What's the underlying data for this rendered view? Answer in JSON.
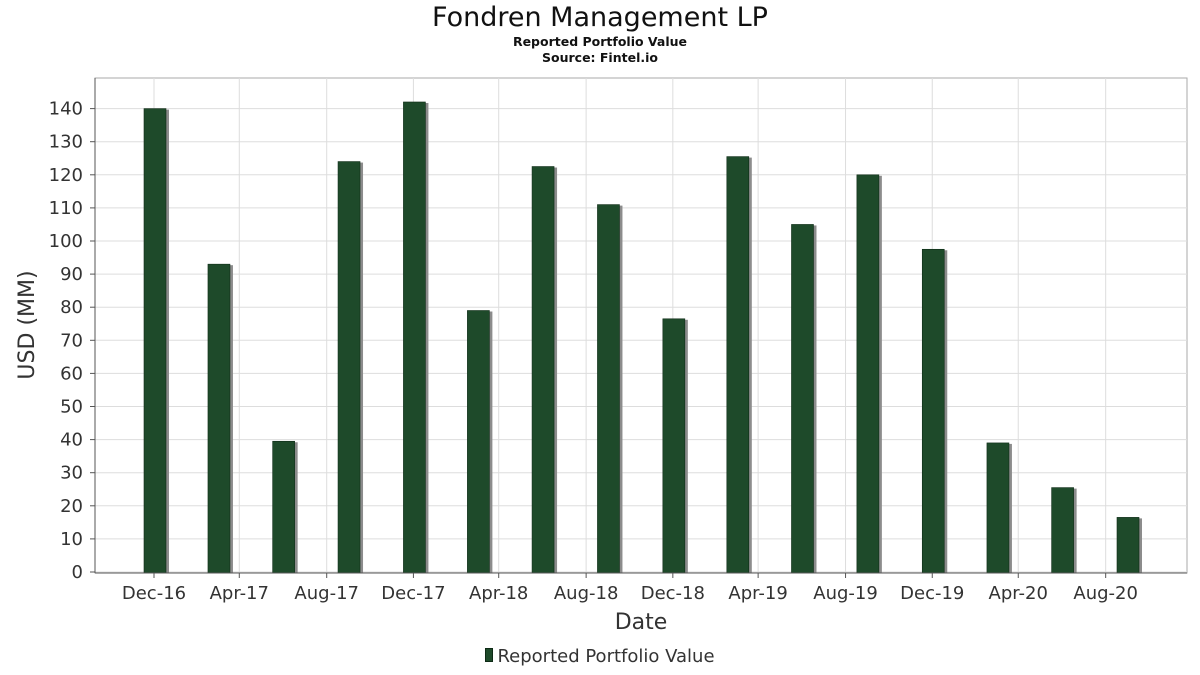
{
  "header": {
    "title": "Fondren Management LP",
    "subtitle": "Reported Portfolio Value",
    "source": "Source: Fintel.io"
  },
  "chart_data": {
    "type": "bar",
    "title": "Fondren Management LP",
    "subtitle": "Reported Portfolio Value",
    "xlabel": "Date",
    "ylabel": "USD (MM)",
    "ylim": [
      0,
      150
    ],
    "yticks": [
      0,
      10,
      20,
      30,
      40,
      50,
      60,
      70,
      80,
      90,
      100,
      110,
      120,
      130,
      140
    ],
    "x_tick_labels": [
      "Dec-16",
      "Apr-17",
      "Aug-17",
      "Dec-17",
      "Apr-18",
      "Aug-18",
      "Dec-18",
      "Apr-19",
      "Aug-19",
      "Dec-19",
      "Apr-20",
      "Aug-20"
    ],
    "bar_dates": [
      "2016-12-31",
      "2017-03-31",
      "2017-06-30",
      "2017-09-30",
      "2017-12-31",
      "2018-03-31",
      "2018-06-30",
      "2018-09-30",
      "2018-12-31",
      "2019-03-31",
      "2019-06-30",
      "2019-09-30",
      "2019-12-31",
      "2020-03-31",
      "2020-06-30",
      "2020-09-30"
    ],
    "series": [
      {
        "name": "Reported Portfolio Value",
        "values": [
          140,
          93,
          39.5,
          124,
          142,
          79,
          122.5,
          111,
          76.5,
          125.5,
          105,
          120,
          97.5,
          39,
          25.5,
          16.5
        ]
      }
    ],
    "legend_position": "bottom-center",
    "grid": true,
    "colors": {
      "bar": "#1e4a2a",
      "bar_shadow": "#8c8c8c",
      "grid": "#dddddd",
      "axis": "#555555"
    }
  },
  "legend": {
    "label": "Reported Portfolio Value"
  }
}
